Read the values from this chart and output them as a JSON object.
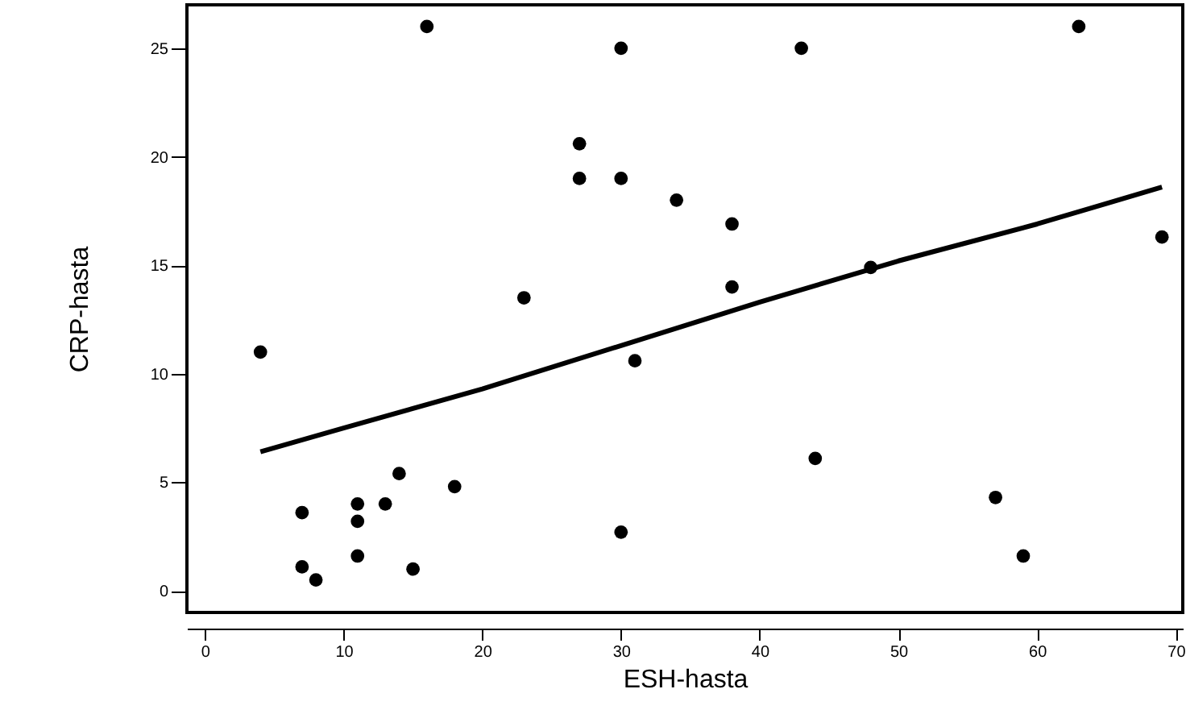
{
  "chart_data": {
    "type": "scatter",
    "xlabel": "ESH-hasta",
    "ylabel": "CRP-hasta",
    "xlim": [
      -1.3,
      70.5
    ],
    "ylim": [
      -1,
      27
    ],
    "xticks": [
      0,
      10,
      20,
      30,
      40,
      50,
      60,
      70
    ],
    "yticks": [
      0,
      5,
      10,
      15,
      20,
      25
    ],
    "grid": false,
    "series": [
      {
        "marker": "circle",
        "color": "#000000",
        "x": [
          4,
          7,
          7,
          8,
          11,
          11,
          11,
          13,
          14,
          15,
          18,
          30,
          16,
          30,
          27,
          27,
          30,
          23,
          31,
          34,
          38,
          38,
          43,
          48,
          63,
          69,
          44,
          57,
          59
        ],
        "values": [
          11,
          3.6,
          1.1,
          0.5,
          4.0,
          3.2,
          1.6,
          4.0,
          5.4,
          1.0,
          4.8,
          2.7,
          26,
          25,
          20.6,
          19,
          19,
          13.5,
          10.6,
          18,
          16.9,
          14,
          25,
          14.9,
          26,
          16.3,
          6.1,
          4.3,
          1.6
        ]
      },
      {
        "type": "line",
        "marker": "none",
        "color": "#000000",
        "line_style": "solid",
        "x": [
          4,
          10,
          20,
          30,
          40,
          50,
          60,
          69
        ],
        "values": [
          6.4,
          7.5,
          9.3,
          11.3,
          13.3,
          15.2,
          16.9,
          18.6
        ]
      }
    ]
  }
}
